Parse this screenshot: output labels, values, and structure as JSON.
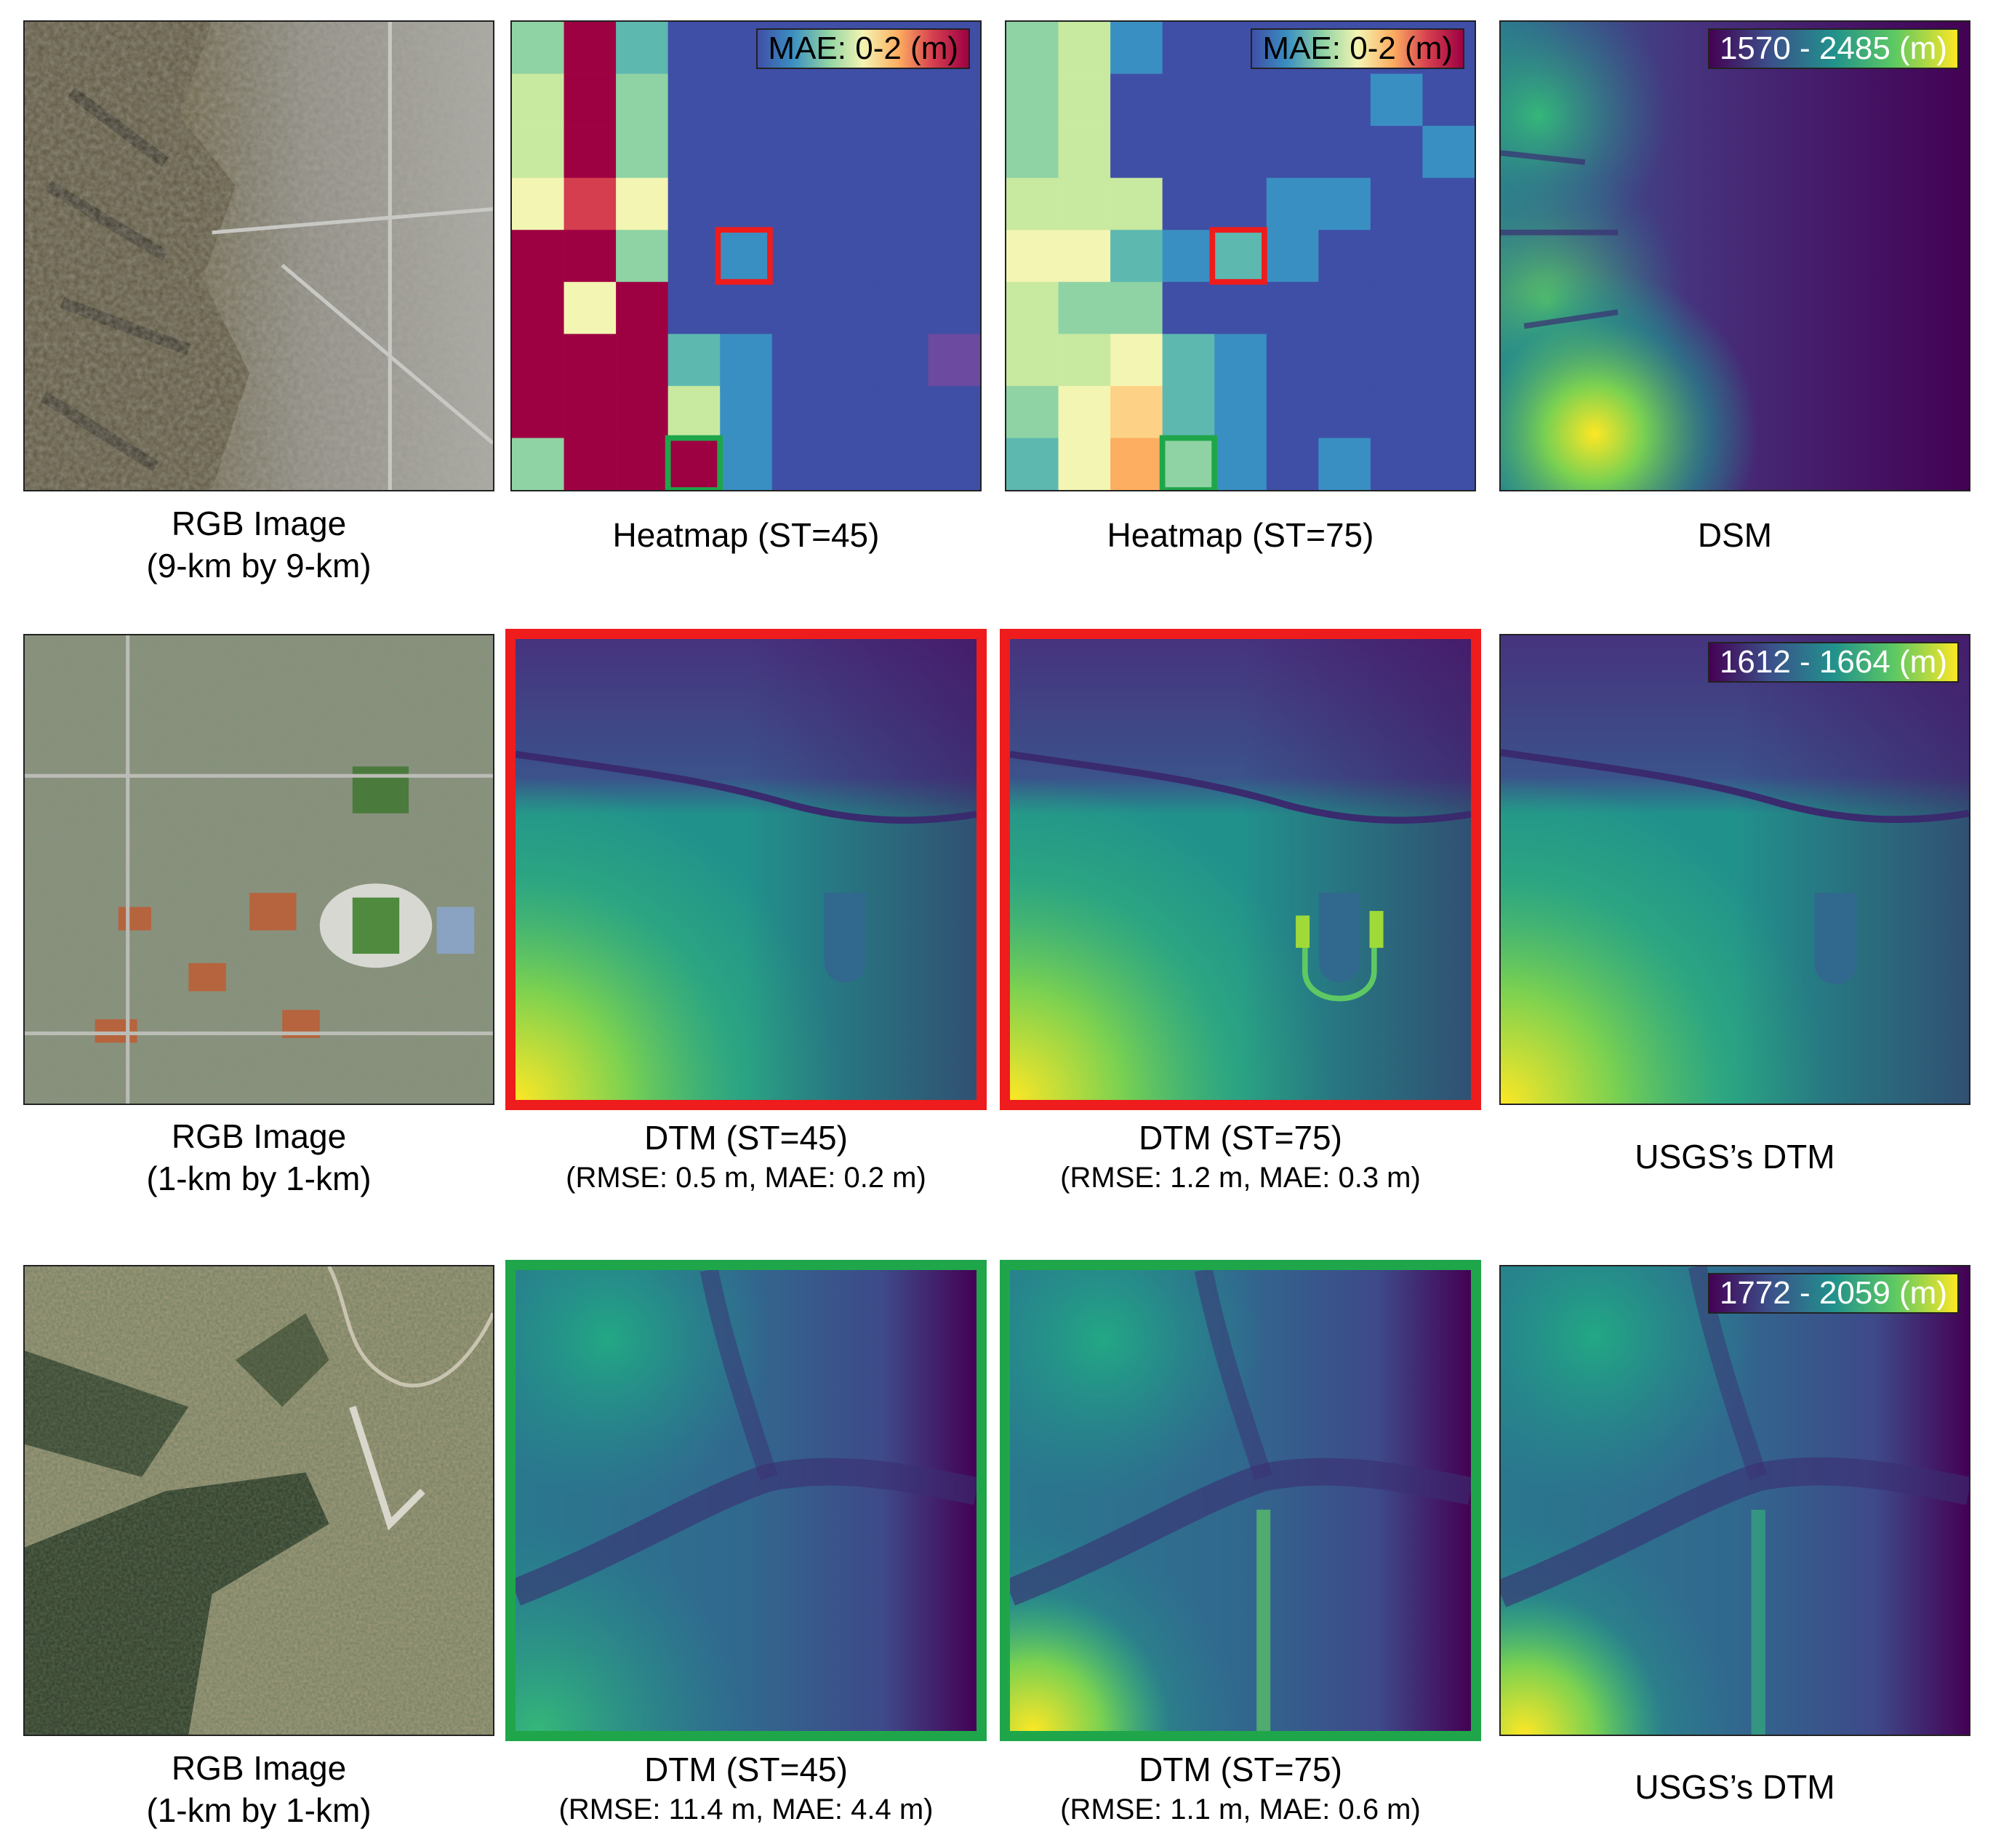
{
  "legends": {
    "mae_range": "MAE: 0-2 (m)",
    "dsm_range": "1570 - 2485 (m)",
    "row2_range": "1612 - 1664 (m)",
    "row3_range": "1772 - 2059 (m)"
  },
  "captions": {
    "row1": {
      "rgb_line1": "RGB Image",
      "rgb_line2": "(9-km by 9-km)",
      "heat45": "Heatmap (ST=45)",
      "heat75": "Heatmap (ST=75)",
      "dsm": "DSM"
    },
    "row2": {
      "rgb_line1": "RGB Image",
      "rgb_line2": "(1-km by 1-km)",
      "dtm45_line1": "DTM (ST=45)",
      "dtm45_line2": "(RMSE: 0.5 m, MAE: 0.2 m)",
      "dtm75_line1": "DTM (ST=75)",
      "dtm75_line2": "(RMSE: 1.2 m, MAE: 0.3 m)",
      "usgs": "USGS’s DTM"
    },
    "row3": {
      "rgb_line1": "RGB Image",
      "rgb_line2": "(1-km by 1-km)",
      "dtm45_line1": "DTM (ST=45)",
      "dtm45_line2": "(RMSE: 11.4 m, MAE: 4.4 m)",
      "dtm75_line1": "DTM (ST=75)",
      "dtm75_line2": "(RMSE: 1.1 m, MAE: 0.6 m)",
      "usgs": "USGS’s DTM"
    }
  },
  "colors": {
    "frame_red": "#ee1c1c",
    "frame_green": "#1fa64a",
    "heat_palette": [
      "#3f4fa6",
      "#3a8fc2",
      "#5db8b0",
      "#8fd3a4",
      "#c8e9a0",
      "#f3f5b2",
      "#fdd286",
      "#fdae61",
      "#d53e4f",
      "#9e0142",
      "#6b4aa0"
    ]
  },
  "heatmap45": [
    [
      3,
      9,
      2,
      0,
      0,
      0,
      0,
      0,
      0
    ],
    [
      4,
      9,
      3,
      0,
      0,
      0,
      0,
      0,
      0
    ],
    [
      4,
      9,
      3,
      0,
      0,
      0,
      0,
      0,
      0
    ],
    [
      5,
      8,
      5,
      0,
      0,
      0,
      0,
      0,
      0
    ],
    [
      9,
      9,
      3,
      0,
      1,
      0,
      0,
      0,
      0
    ],
    [
      9,
      5,
      9,
      0,
      0,
      0,
      0,
      0,
      0
    ],
    [
      9,
      9,
      9,
      2,
      1,
      0,
      0,
      0,
      10
    ],
    [
      9,
      9,
      9,
      4,
      1,
      0,
      0,
      0,
      0
    ],
    [
      3,
      9,
      9,
      9,
      1,
      0,
      0,
      0,
      0
    ]
  ],
  "heatmap75": [
    [
      3,
      4,
      1,
      0,
      0,
      0,
      0,
      0,
      0
    ],
    [
      3,
      4,
      0,
      0,
      0,
      0,
      0,
      1,
      0
    ],
    [
      3,
      4,
      0,
      0,
      0,
      0,
      0,
      0,
      1
    ],
    [
      4,
      4,
      4,
      0,
      0,
      1,
      1,
      0,
      0
    ],
    [
      5,
      5,
      2,
      1,
      2,
      1,
      0,
      0,
      0
    ],
    [
      4,
      3,
      3,
      0,
      0,
      0,
      0,
      0,
      0
    ],
    [
      4,
      4,
      5,
      2,
      1,
      0,
      0,
      0,
      0
    ],
    [
      3,
      5,
      6,
      2,
      1,
      0,
      0,
      0,
      0
    ],
    [
      2,
      5,
      7,
      3,
      1,
      0,
      1,
      0,
      0
    ]
  ]
}
